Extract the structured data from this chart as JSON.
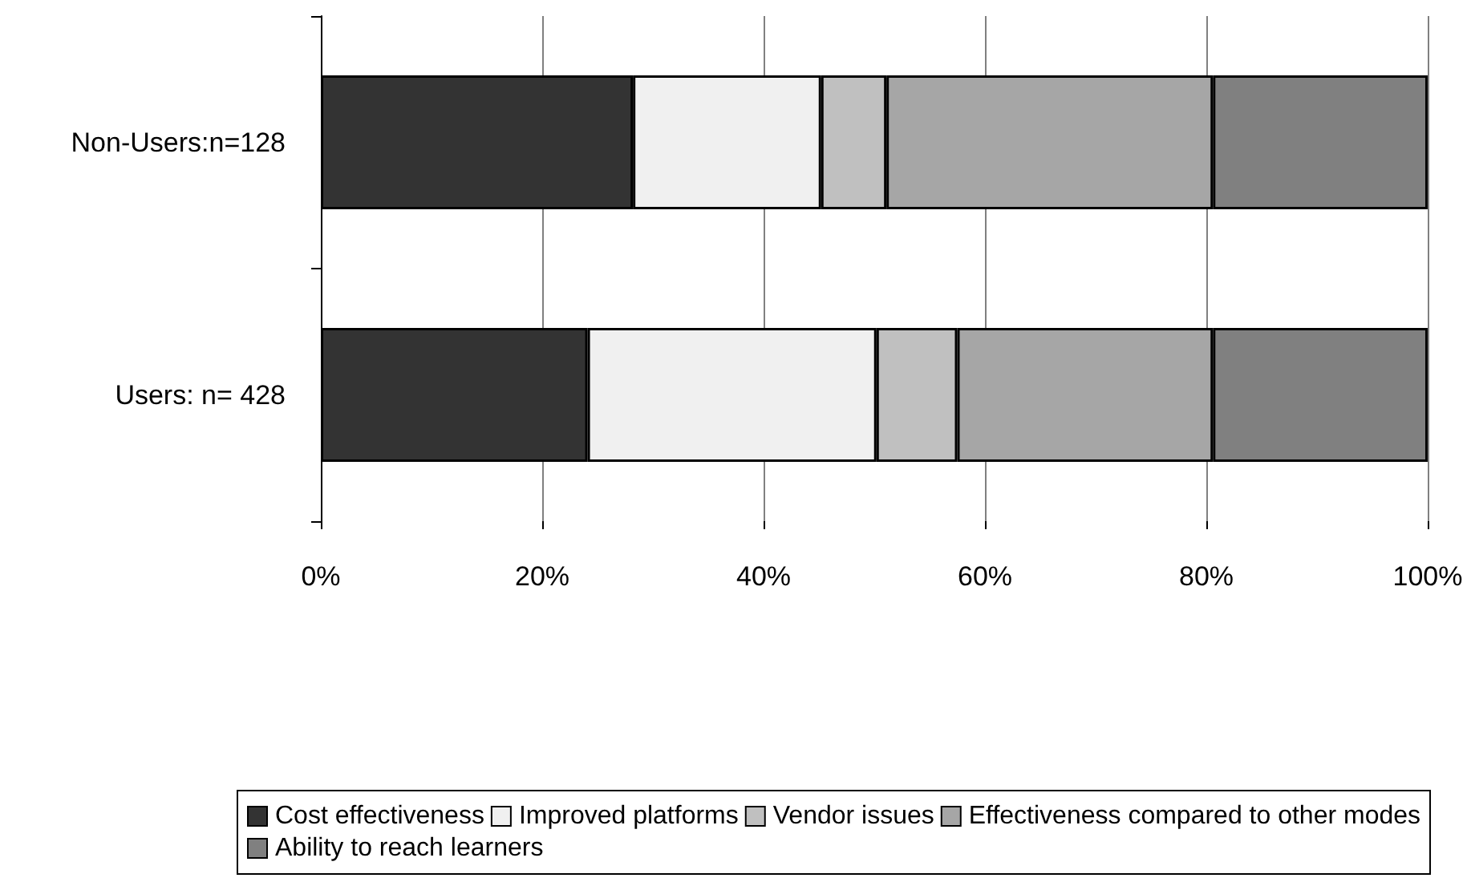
{
  "chart_data": {
    "type": "bar",
    "orientation": "horizontal",
    "stacked": true,
    "categories": [
      "Non-Users:n=128",
      "Users: n= 428"
    ],
    "series": [
      {
        "name": "Cost effectiveness",
        "color": "#333333",
        "values": [
          28.2,
          24.1
        ]
      },
      {
        "name": "Improved platforms",
        "color": "#f0f0f0",
        "values": [
          17.0,
          26.1
        ]
      },
      {
        "name": "Vendor issues",
        "color": "#c0c0c0",
        "values": [
          5.9,
          7.3
        ]
      },
      {
        "name": "Effectiveness compared to other modes",
        "color": "#a6a6a6",
        "values": [
          29.5,
          23.1
        ]
      },
      {
        "name": "Ability to reach learners",
        "color": "#808080",
        "values": [
          19.4,
          19.4
        ]
      }
    ],
    "xlim": [
      0,
      100
    ],
    "xticks": [
      {
        "value": 0,
        "label": "0%"
      },
      {
        "value": 20,
        "label": "20%"
      },
      {
        "value": 40,
        "label": "40%"
      },
      {
        "value": 60,
        "label": "60%"
      },
      {
        "value": 80,
        "label": "80%"
      },
      {
        "value": 100,
        "label": "100%"
      }
    ],
    "grid": "x",
    "legend": "bottom"
  }
}
